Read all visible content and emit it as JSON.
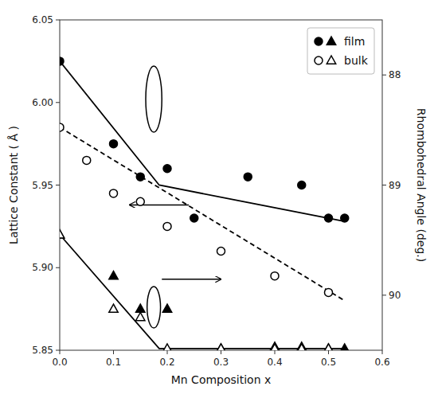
{
  "chart_data": {
    "type": "scatter",
    "xlabel": "Mn Composition x",
    "ylabel": "Lattice Constant ( Å )",
    "y2label": "Rhombohedral Angle (deg.)",
    "xlim": [
      0,
      0.6
    ],
    "ylim": [
      5.85,
      6.05
    ],
    "y2lim": [
      90.5,
      87.5
    ],
    "xticks": [
      {
        "value": 0,
        "label": "0.0"
      },
      0.1,
      0.2,
      0.3,
      0.4,
      0.5,
      0.6
    ],
    "yticks": [
      5.85,
      {
        "value": 5.9,
        "label": "5.90"
      },
      5.95,
      {
        "value": 6.0,
        "label": "6.00"
      },
      6.05
    ],
    "y2ticks": [
      88,
      89,
      90
    ],
    "grid": false,
    "legend": "upper right",
    "series": [
      {
        "name": "film",
        "type": "scatter",
        "marker": "circle",
        "color": "#000000",
        "x": [
          0.0,
          0.1,
          0.15,
          0.2,
          0.25,
          0.35,
          0.45,
          0.5,
          0.53
        ],
        "values": [
          6.025,
          5.975,
          5.955,
          5.96,
          5.93,
          5.955,
          5.95,
          5.93,
          5.93
        ]
      },
      {
        "name": "film",
        "type": "scatter",
        "marker": "triangle",
        "color": "#000000",
        "x": [
          0.0,
          0.1,
          0.15,
          0.2,
          0.3,
          0.4,
          0.45,
          0.5,
          0.53
        ],
        "values": [
          5.92,
          5.895,
          5.875,
          5.875,
          5.851,
          5.852,
          5.852,
          5.851,
          5.851
        ]
      },
      {
        "name": "bulk",
        "type": "scatter",
        "marker": "open-circle",
        "color": "#000000",
        "x": [
          0.0,
          0.05,
          0.1,
          0.15,
          0.2,
          0.3,
          0.4,
          0.5
        ],
        "values": [
          5.985,
          5.965,
          5.945,
          5.94,
          5.925,
          5.91,
          5.895,
          5.885
        ]
      },
      {
        "name": "bulk",
        "type": "scatter",
        "marker": "open-triangle",
        "color": "#000000",
        "x": [
          0.0,
          0.1,
          0.15,
          0.2,
          0.3,
          0.4,
          0.45,
          0.5
        ],
        "values": [
          5.92,
          5.875,
          5.87,
          5.851,
          5.851,
          5.851,
          5.851,
          5.851
        ]
      },
      {
        "type": "line",
        "line_style": "solid",
        "color": "#000000",
        "x": [
          0.0,
          0.185,
          0.53
        ],
        "values": [
          6.025,
          5.95,
          5.928
        ]
      },
      {
        "type": "line",
        "line_style": "solid",
        "color": "#000000",
        "x": [
          0.0,
          0.185,
          0.53
        ],
        "values": [
          5.92,
          5.851,
          5.851
        ]
      },
      {
        "type": "line",
        "line_style": "dashed",
        "color": "#000000",
        "x": [
          0.0,
          0.53
        ],
        "values": [
          5.985,
          5.88
        ]
      }
    ],
    "ellipses": [
      {
        "cx": 0.175,
        "cy": 6.002,
        "width": 0.03,
        "height": 0.04
      },
      {
        "cx": 0.175,
        "cy": 5.876,
        "width": 0.025,
        "height": 0.025
      }
    ],
    "arrows": [
      {
        "x_from": 0.24,
        "y_from": 5.938,
        "x_to": 0.13,
        "y_to": 5.938
      },
      {
        "x_from": 0.19,
        "y_from": 5.893,
        "x_to": 0.3,
        "y_to": 5.893
      }
    ]
  }
}
